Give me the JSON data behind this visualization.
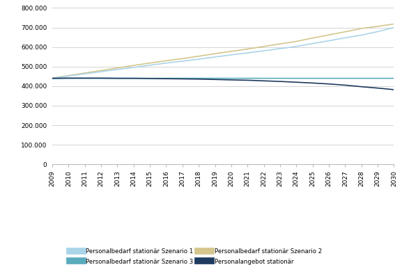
{
  "years": [
    2009,
    2010,
    2011,
    2012,
    2013,
    2014,
    2015,
    2016,
    2017,
    2018,
    2019,
    2020,
    2021,
    2022,
    2023,
    2024,
    2025,
    2026,
    2027,
    2028,
    2029,
    2030
  ],
  "szenario1": [
    440000,
    452000,
    463000,
    474000,
    485000,
    496000,
    507000,
    518000,
    528000,
    538000,
    549000,
    560000,
    570000,
    581000,
    592000,
    603000,
    618000,
    632000,
    647000,
    661000,
    679000,
    700000
  ],
  "szenario2": [
    441000,
    454000,
    467000,
    480000,
    493000,
    506000,
    518000,
    530000,
    541000,
    553000,
    566000,
    578000,
    590000,
    603000,
    616000,
    629000,
    646000,
    662000,
    678000,
    695000,
    706000,
    718000
  ],
  "szenario3": [
    439000,
    440000,
    440000,
    440000,
    440000,
    440000,
    440000,
    440000,
    440000,
    440000,
    440000,
    440000,
    440000,
    440000,
    440000,
    440000,
    440000,
    440000,
    440000,
    440000,
    440000,
    440000
  ],
  "angebot": [
    440000,
    441000,
    441000,
    441000,
    440000,
    440000,
    439000,
    438000,
    437000,
    436000,
    434000,
    432000,
    430000,
    427000,
    424000,
    420000,
    416000,
    411000,
    405000,
    397000,
    390000,
    382000
  ],
  "color_szenario1": "#aad4e8",
  "color_szenario2": "#d4c68c",
  "color_szenario3": "#5aabbc",
  "color_angebot": "#1e3a5f",
  "ylim": [
    0,
    800000
  ],
  "yticks": [
    0,
    100000,
    200000,
    300000,
    400000,
    500000,
    600000,
    700000,
    800000
  ],
  "legend_labels": [
    "Personalbedarf stationär Szenario 1",
    "Personalbedarf stationär Szenario 2",
    "Personalbedarf stationär Szenario 3",
    "Personalangebot stationär"
  ],
  "background_color": "#ffffff",
  "grid_color": "#cccccc",
  "figsize": [
    5.77,
    3.81
  ],
  "dpi": 100
}
